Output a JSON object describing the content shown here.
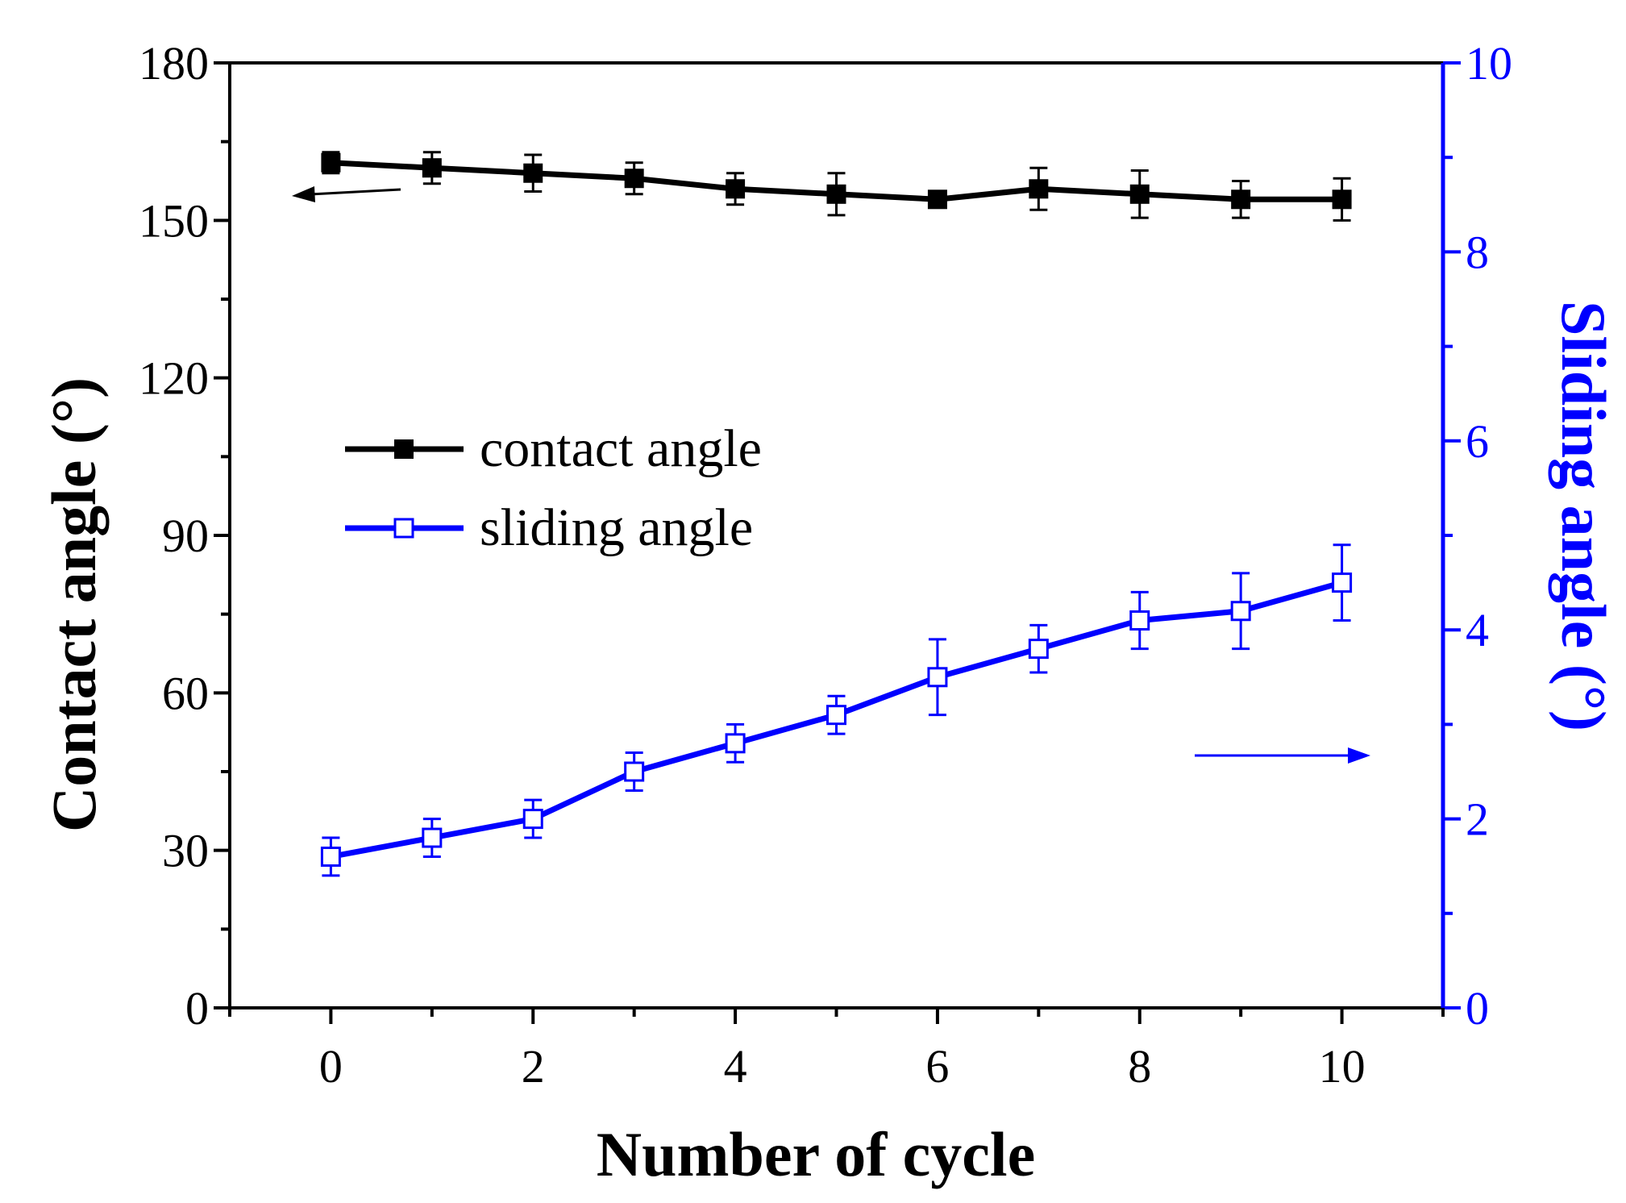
{
  "chart_data": {
    "type": "line",
    "x": [
      0,
      1,
      2,
      3,
      4,
      5,
      6,
      7,
      8,
      9,
      10
    ],
    "xlabel": "Number of cycle",
    "ylabel": "Contact angle (°)",
    "y2label": "Sliding angle (°)",
    "xlim": [
      -1,
      11
    ],
    "ylim": [
      0,
      180
    ],
    "y2lim": [
      0,
      10
    ],
    "xticks": [
      "0",
      "2",
      "4",
      "6",
      "8",
      "10"
    ],
    "yticks": [
      "0",
      "30",
      "60",
      "90",
      "120",
      "150",
      "180"
    ],
    "y2ticks": [
      "0",
      "2",
      "4",
      "6",
      "8",
      "10"
    ],
    "legend_position": "middle-left",
    "series": [
      {
        "name": "contact angle",
        "axis": "left",
        "color": "#000000",
        "marker": "filled-square",
        "values": [
          161,
          160,
          159,
          158,
          156,
          155,
          154,
          156,
          155,
          154,
          154
        ],
        "errors": [
          2,
          3,
          3.5,
          3,
          3,
          4,
          1.5,
          4,
          4.5,
          3.5,
          4
        ]
      },
      {
        "name": "sliding angle",
        "axis": "right",
        "color": "#0000ff",
        "marker": "open-square",
        "values": [
          1.6,
          1.8,
          2.0,
          2.5,
          2.8,
          3.1,
          3.5,
          3.8,
          4.1,
          4.2,
          4.5
        ],
        "errors": [
          0.2,
          0.2,
          0.2,
          0.2,
          0.2,
          0.2,
          0.4,
          0.25,
          0.3,
          0.4,
          0.4
        ]
      }
    ],
    "annotations": [
      {
        "type": "arrow",
        "direction": "left",
        "series": "contact angle",
        "color": "#000000"
      },
      {
        "type": "arrow",
        "direction": "right",
        "series": "sliding angle",
        "color": "#0000ff"
      }
    ]
  }
}
